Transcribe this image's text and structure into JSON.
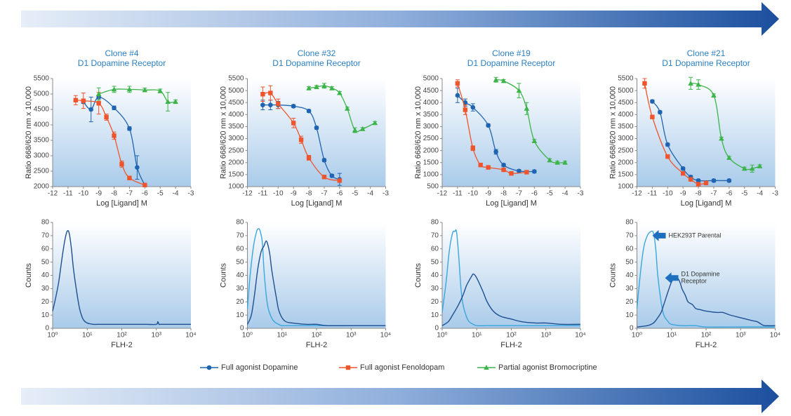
{
  "chart_data": [
    {
      "type": "line",
      "title": "Clone #4",
      "subtitle": "D1 Dopamine Receptor",
      "x_label": "Log [Ligand] M",
      "y_label": "Ratio 668/620 nm x 10,000",
      "xlim": [
        -12,
        -3
      ],
      "xticks": [
        -12,
        -11,
        -10,
        -9,
        -8,
        -7,
        -6,
        -5,
        -4,
        -3
      ],
      "ylim": [
        2000,
        5500
      ],
      "yticks": [
        2000,
        2500,
        3000,
        3500,
        4000,
        4500,
        5000,
        5500
      ],
      "series": [
        {
          "name": "Full agonist Dopamine",
          "color": "#1f64b0",
          "marker": "circle",
          "x": [
            -10,
            -9.5,
            -9,
            -8,
            -7,
            -6.5,
            -6
          ],
          "values": [
            4750,
            4500,
            4900,
            4550,
            3880,
            2620,
            2050
          ],
          "errors": [
            60,
            400,
            60,
            60,
            60,
            380,
            40
          ]
        },
        {
          "name": "Full agonist Fenoldopam",
          "color": "#f0542c",
          "marker": "square",
          "x": [
            -10.5,
            -10,
            -9,
            -8.5,
            -8,
            -7.5,
            -7,
            -6
          ],
          "values": [
            4800,
            4780,
            4700,
            4250,
            3650,
            2730,
            2280,
            2050
          ],
          "errors": [
            150,
            250,
            350,
            100,
            120,
            100,
            60,
            40
          ]
        },
        {
          "name": "Partial agonist Bromocriptine",
          "color": "#3cb44a",
          "marker": "triangle",
          "x": [
            -9,
            -8,
            -7,
            -6,
            -5,
            -4.5,
            -4
          ],
          "values": [
            5000,
            5150,
            5150,
            5130,
            5100,
            4750,
            4750
          ],
          "errors": [
            200,
            100,
            100,
            60,
            60,
            300,
            60
          ]
        }
      ]
    },
    {
      "type": "line",
      "title": "Clone #32",
      "subtitle": "D1 Dopamine Receptor",
      "x_label": "Log [Ligand] M",
      "y_label": "Ratio 668/620 nm x 10,000",
      "xlim": [
        -12,
        -3
      ],
      "xticks": [
        -12,
        -11,
        -10,
        -9,
        -8,
        -7,
        -6,
        -5,
        -4,
        -3
      ],
      "ylim": [
        1000,
        5500
      ],
      "yticks": [
        1000,
        1500,
        2000,
        2500,
        3000,
        3500,
        4000,
        4500,
        5000,
        5500
      ],
      "series": [
        {
          "color": "#1f64b0",
          "marker": "circle",
          "x": [
            -11,
            -10.5,
            -10,
            -9,
            -8,
            -7.5,
            -7,
            -6.5,
            -6
          ],
          "values": [
            4400,
            4400,
            4400,
            4350,
            4150,
            3450,
            2100,
            1450,
            1300
          ],
          "errors": [
            200,
            200,
            150,
            60,
            60,
            60,
            60,
            60,
            250
          ]
        },
        {
          "color": "#f0542c",
          "marker": "square",
          "x": [
            -11,
            -10.5,
            -10,
            -9,
            -8.5,
            -8,
            -7,
            -6
          ],
          "values": [
            4850,
            4900,
            4450,
            3650,
            2950,
            2200,
            1400,
            1250
          ],
          "errors": [
            300,
            300,
            200,
            200,
            150,
            100,
            60,
            60
          ]
        },
        {
          "color": "#3cb44a",
          "marker": "triangle",
          "x": [
            -8,
            -7.5,
            -7,
            -6.5,
            -6,
            -5.5,
            -5,
            -4.5,
            -3.7
          ],
          "values": [
            5100,
            5150,
            5200,
            5100,
            4900,
            4250,
            3350,
            3400,
            3650
          ],
          "errors": [
            60,
            60,
            100,
            60,
            60,
            60,
            100,
            60,
            60
          ]
        }
      ]
    },
    {
      "type": "line",
      "title": "Clone #19",
      "subtitle": "D1 Dopamine Receptor",
      "x_label": "Log [Ligand] M",
      "y_label": "Ratio 668/620 nm x 10,000",
      "xlim": [
        -12,
        -3
      ],
      "xticks": [
        -12,
        -11,
        -10,
        -9,
        -8,
        -7,
        -6,
        -5,
        -4,
        -3
      ],
      "ylim": [
        500,
        5000
      ],
      "yticks": [
        500,
        1000,
        1500,
        2000,
        2500,
        3000,
        3500,
        4000,
        4500,
        5000
      ],
      "series": [
        {
          "color": "#1f64b0",
          "marker": "circle",
          "x": [
            -11,
            -10.5,
            -10,
            -9,
            -8.5,
            -8,
            -7,
            -6
          ],
          "values": [
            4300,
            4000,
            3800,
            3050,
            1950,
            1400,
            1150,
            1130
          ],
          "errors": [
            300,
            150,
            150,
            60,
            100,
            60,
            60,
            60
          ]
        },
        {
          "color": "#f0542c",
          "marker": "square",
          "x": [
            -11,
            -10.5,
            -10,
            -9.5,
            -9,
            -8,
            -7.5,
            -6.5
          ],
          "values": [
            4800,
            3700,
            2100,
            1400,
            1300,
            1200,
            1050,
            1100
          ],
          "errors": [
            150,
            200,
            100,
            60,
            60,
            60,
            60,
            60
          ]
        },
        {
          "color": "#3cb44a",
          "marker": "triangle",
          "x": [
            -8.5,
            -8,
            -7,
            -6.5,
            -6,
            -5,
            -4.5,
            -4
          ],
          "values": [
            4950,
            4900,
            4500,
            3750,
            2400,
            1600,
            1500,
            1500
          ],
          "errors": [
            100,
            60,
            300,
            250,
            60,
            60,
            60,
            60
          ]
        }
      ]
    },
    {
      "type": "line",
      "title": "Clone #21",
      "subtitle": "D1 Dopamine Receptor",
      "x_label": "Log [Ligand] M",
      "y_label": "Ratio 668/620 nm x 10,000",
      "xlim": [
        -12,
        -3
      ],
      "xticks": [
        -12,
        -11,
        -10,
        -9,
        -8,
        -7,
        -6,
        -5,
        -4,
        -3
      ],
      "ylim": [
        1000,
        5500
      ],
      "yticks": [
        1000,
        1500,
        2000,
        2500,
        3000,
        3500,
        4000,
        4500,
        5000,
        5500
      ],
      "series": [
        {
          "color": "#1f64b0",
          "marker": "circle",
          "x": [
            -11,
            -10.5,
            -10,
            -9,
            -8.5,
            -8,
            -7,
            -6
          ],
          "values": [
            4550,
            4100,
            2750,
            1750,
            1400,
            1250,
            1250,
            1250
          ],
          "errors": [
            60,
            60,
            60,
            60,
            60,
            60,
            60,
            60
          ]
        },
        {
          "color": "#f0542c",
          "marker": "square",
          "x": [
            -11.5,
            -11,
            -10,
            -9,
            -8.5,
            -8,
            -7.5
          ],
          "values": [
            5300,
            3900,
            2250,
            1550,
            1300,
            1100,
            1150
          ],
          "errors": [
            200,
            60,
            60,
            60,
            60,
            60,
            60
          ]
        },
        {
          "color": "#3cb44a",
          "marker": "triangle",
          "x": [
            -8.5,
            -8,
            -7,
            -6.5,
            -6,
            -5,
            -4.5,
            -4
          ],
          "values": [
            5300,
            5250,
            4800,
            3000,
            2200,
            1750,
            1750,
            1850
          ],
          "errors": [
            250,
            200,
            60,
            60,
            60,
            60,
            150,
            60
          ]
        }
      ]
    },
    {
      "type": "line",
      "log_scale": true,
      "x_label": "FLH-2",
      "y_label": "Counts",
      "xlim": [
        1,
        10000
      ],
      "xticks": [
        {
          "value": 1,
          "label": "10⁰"
        },
        {
          "value": 10,
          "label": "10¹"
        },
        {
          "value": 100,
          "label": "10²"
        },
        {
          "value": 1000,
          "label": "10³"
        },
        {
          "value": 10000,
          "label": "10⁴"
        }
      ],
      "ylim": [
        0,
        80
      ],
      "yticks": [
        0,
        10,
        20,
        30,
        40,
        50,
        60,
        70,
        80
      ],
      "series": [
        {
          "color": "#1d4f91",
          "x": [
            1,
            1.2,
            1.5,
            1.8,
            2.2,
            2.6,
            3,
            3.5,
            4,
            5,
            6,
            7,
            8,
            10,
            15,
            20,
            30,
            50,
            100,
            200,
            500,
            1000,
            1100,
            1200,
            1300,
            1500,
            2000,
            5000,
            10000
          ],
          "values": [
            13,
            22,
            35,
            50,
            65,
            73,
            72,
            60,
            45,
            27,
            15,
            9,
            6,
            4,
            3,
            3,
            3,
            3,
            3,
            3,
            3,
            3,
            5,
            3,
            3,
            3,
            3,
            3,
            3
          ]
        }
      ]
    },
    {
      "type": "line",
      "log_scale": true,
      "x_label": "FLH-2",
      "y_label": "Counts",
      "xlim": [
        1,
        10000
      ],
      "xticks": [
        {
          "value": 1,
          "label": "10⁰"
        },
        {
          "value": 10,
          "label": "10¹"
        },
        {
          "value": 100,
          "label": "10²"
        },
        {
          "value": 1000,
          "label": "10³"
        },
        {
          "value": 10000,
          "label": "10⁴"
        }
      ],
      "ylim": [
        0,
        80
      ],
      "yticks": [
        0,
        10,
        20,
        30,
        40,
        50,
        60,
        70,
        80
      ],
      "series": [
        {
          "color": "#3aa6dc",
          "x": [
            1,
            1.2,
            1.5,
            1.8,
            2,
            2.3,
            2.7,
            3,
            3.5,
            4,
            5,
            6,
            8,
            10,
            15,
            20,
            50,
            100,
            1000,
            10000
          ],
          "values": [
            15,
            40,
            62,
            72,
            75,
            74,
            65,
            45,
            25,
            15,
            8,
            5,
            3,
            2,
            2,
            2,
            2,
            2,
            2,
            2
          ]
        },
        {
          "color": "#1d4f91",
          "x": [
            1,
            1.3,
            1.6,
            2,
            2.5,
            3,
            3.5,
            4,
            4.5,
            5,
            6,
            7,
            8,
            10,
            13,
            20,
            50,
            100,
            200,
            1000,
            10000
          ],
          "values": [
            3,
            10,
            25,
            45,
            58,
            62,
            66,
            62,
            55,
            45,
            32,
            22,
            14,
            8,
            5,
            4,
            3,
            3,
            2,
            2,
            2
          ]
        }
      ]
    },
    {
      "type": "line",
      "log_scale": true,
      "x_label": "FLH-2",
      "y_label": "Counts",
      "xlim": [
        1,
        10000
      ],
      "xticks": [
        {
          "value": 1,
          "label": "10⁰"
        },
        {
          "value": 10,
          "label": "10¹"
        },
        {
          "value": 100,
          "label": "10²"
        },
        {
          "value": 1000,
          "label": "10³"
        },
        {
          "value": 10000,
          "label": "10⁴"
        }
      ],
      "ylim": [
        0,
        80
      ],
      "yticks": [
        0,
        10,
        20,
        30,
        40,
        50,
        60,
        70,
        80
      ],
      "series": [
        {
          "color": "#3aa6dc",
          "x": [
            1,
            1.3,
            1.6,
            2,
            2.3,
            2.6,
            3,
            3.5,
            4,
            5,
            6,
            8,
            10,
            20,
            100,
            1000,
            10000
          ],
          "values": [
            12,
            35,
            58,
            72,
            73,
            73,
            55,
            30,
            18,
            9,
            5,
            3,
            2,
            2,
            2,
            2,
            2
          ]
        },
        {
          "color": "#1d4f91",
          "x": [
            1,
            1.5,
            2,
            3,
            4,
            5,
            6,
            7,
            8,
            10,
            15,
            20,
            30,
            50,
            100,
            200,
            500,
            1000,
            3000,
            10000
          ],
          "values": [
            2,
            5,
            10,
            18,
            25,
            32,
            36,
            39,
            41,
            38,
            28,
            20,
            13,
            9,
            7,
            5,
            4,
            4,
            3,
            3
          ]
        }
      ]
    },
    {
      "type": "line",
      "log_scale": true,
      "x_label": "FLH-2",
      "y_label": "Counts",
      "xlim": [
        1,
        10000
      ],
      "xticks": [
        {
          "value": 1,
          "label": "10⁰"
        },
        {
          "value": 10,
          "label": "10¹"
        },
        {
          "value": 100,
          "label": "10²"
        },
        {
          "value": 1000,
          "label": "10³"
        },
        {
          "value": 10000,
          "label": "10⁴"
        }
      ],
      "ylim": [
        0,
        80
      ],
      "yticks": [
        0,
        10,
        20,
        30,
        40,
        50,
        60,
        70,
        80
      ],
      "annotations": [
        {
          "text": [
            "HEK293T Parental"
          ],
          "x": 2.8,
          "y": 70
        },
        {
          "text": [
            "D1 Dopamine",
            "Receptor"
          ],
          "x": 6.5,
          "y": 38
        }
      ],
      "series": [
        {
          "color": "#3aa6dc",
          "x": [
            1,
            1.3,
            1.6,
            2,
            2.5,
            3,
            3.5,
            4,
            5,
            6,
            8,
            10,
            20,
            50,
            100,
            1000,
            10000
          ],
          "values": [
            15,
            45,
            62,
            70,
            73,
            72,
            60,
            40,
            20,
            10,
            5,
            3,
            2,
            2,
            1,
            1,
            1
          ]
        },
        {
          "color": "#1d4f91",
          "x": [
            1,
            2,
            3,
            4,
            5,
            6,
            8,
            10,
            12,
            15,
            18,
            20,
            25,
            30,
            40,
            50,
            70,
            100,
            200,
            300,
            500,
            1000,
            2000,
            3000,
            4000,
            5000,
            10000
          ],
          "values": [
            1,
            2,
            4,
            8,
            12,
            18,
            28,
            35,
            38,
            38,
            34,
            30,
            25,
            20,
            18,
            15,
            14,
            13,
            12,
            12,
            10,
            8,
            6,
            5,
            3,
            2,
            2
          ]
        }
      ]
    }
  ]
}
